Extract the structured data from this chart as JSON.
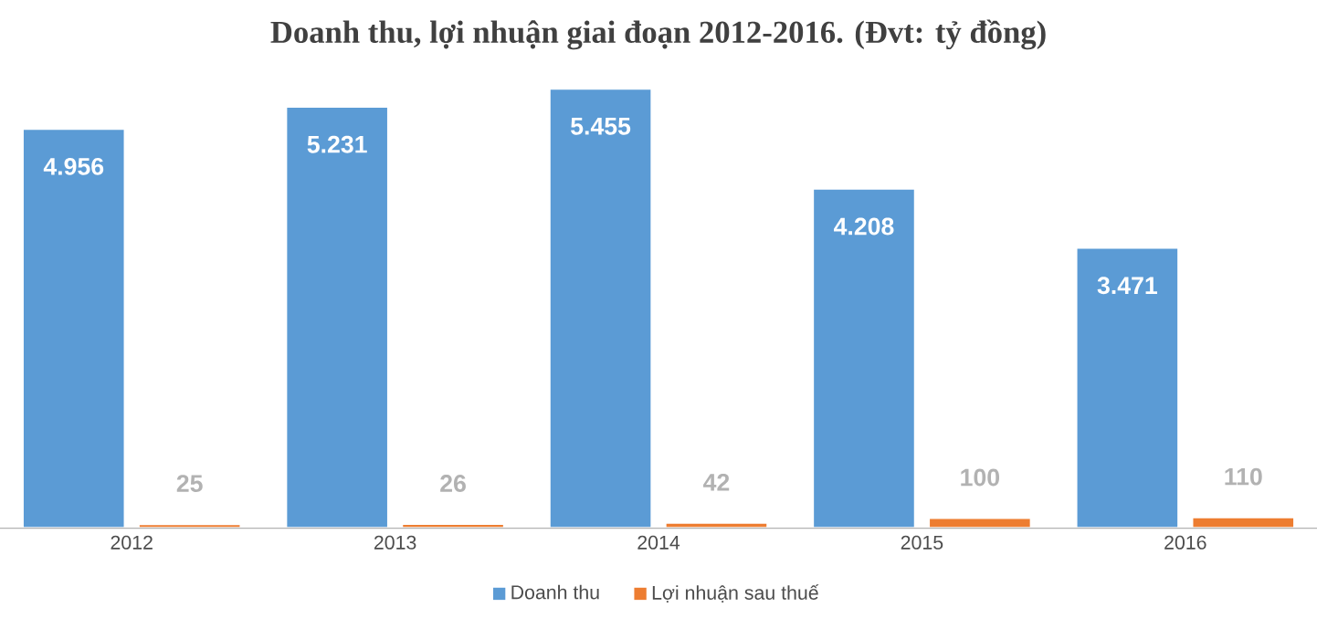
{
  "chart_data": {
    "type": "bar",
    "title": "Doanh thu, lợi nhuận giai đoạn 2012-2016. (Đvt: tỷ đồng)",
    "categories": [
      "2012",
      "2013",
      "2014",
      "2015",
      "2016"
    ],
    "series": [
      {
        "name": "Doanh thu",
        "color": "#5b9bd5",
        "values": [
          4956,
          5231,
          5455,
          4208,
          3471
        ],
        "value_labels": [
          "4.956",
          "5.231",
          "5.455",
          "4.208",
          "3.471"
        ]
      },
      {
        "name": "Lợi nhuận sau thuế",
        "color": "#ed7d31",
        "values": [
          25,
          26,
          42,
          100,
          110
        ],
        "value_labels": [
          "25",
          "26",
          "42",
          "100",
          "110"
        ]
      }
    ],
    "legend": "bottom"
  }
}
